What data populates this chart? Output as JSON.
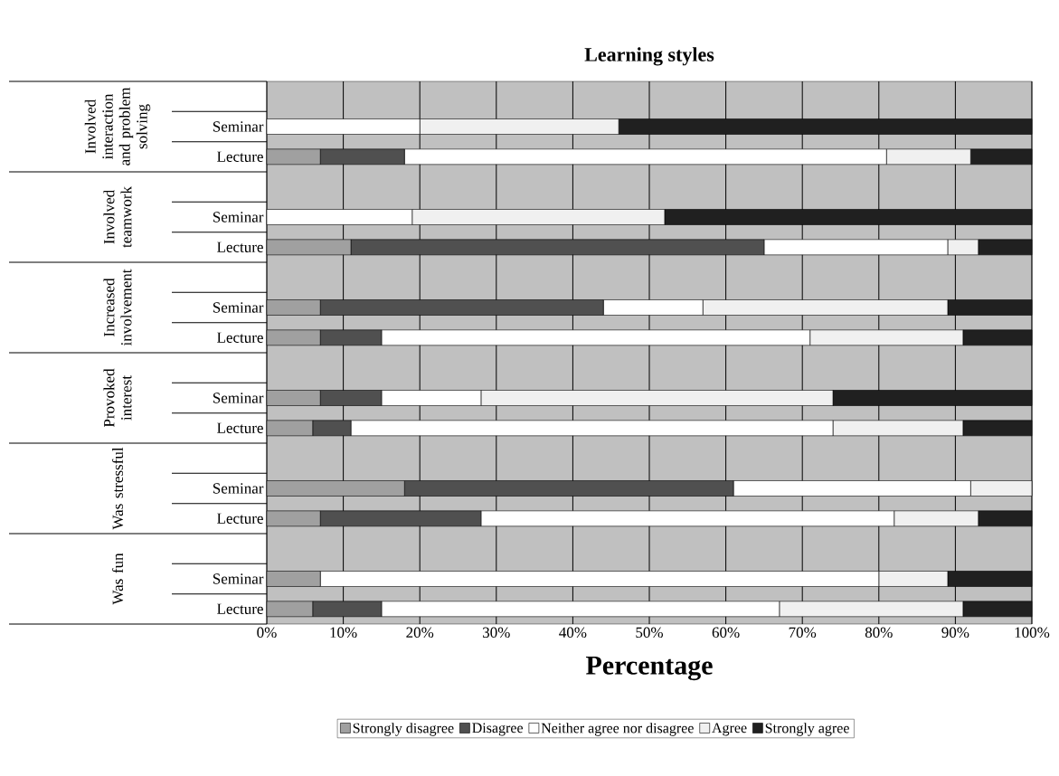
{
  "chart_data": {
    "type": "bar",
    "orientation": "horizontal",
    "stacked": true,
    "title": "Learning styles",
    "xlabel": "Percentage",
    "categories": [
      null,
      "Seminar",
      "Lecture",
      null,
      "Seminar",
      "Lecture",
      null,
      "Seminar",
      "Lecture",
      null,
      "Seminar",
      "Lecture",
      null,
      "Seminar",
      "Lecture",
      null,
      "Seminar",
      "Lecture"
    ],
    "series": [
      {
        "name": "Strongly disagree",
        "color": "#a0a0a0",
        "values": [
          null,
          0,
          7,
          null,
          0,
          11,
          null,
          7,
          7,
          null,
          7,
          6,
          null,
          18,
          7,
          null,
          7,
          6
        ]
      },
      {
        "name": "Disagree",
        "color": "#505050",
        "values": [
          null,
          0,
          11,
          null,
          0,
          54,
          null,
          37,
          8,
          null,
          8,
          5,
          null,
          43,
          21,
          null,
          0,
          9
        ]
      },
      {
        "name": "Neither agree nor disagree",
        "color": "#ffffff",
        "values": [
          null,
          20,
          63,
          null,
          19,
          24,
          null,
          13,
          56,
          null,
          13,
          63,
          null,
          31,
          54,
          null,
          73,
          52
        ]
      },
      {
        "name": "Agree",
        "color": "#f0f0f0",
        "values": [
          null,
          26,
          11,
          null,
          33,
          4,
          null,
          32,
          20,
          null,
          46,
          17,
          null,
          8,
          11,
          null,
          9,
          24
        ]
      },
      {
        "name": "Strongly agree",
        "color": "#202020",
        "values": [
          null,
          54,
          8,
          null,
          48,
          7,
          null,
          11,
          9,
          null,
          26,
          9,
          null,
          0,
          7,
          null,
          11,
          9
        ]
      }
    ],
    "xlim": [
      0,
      100
    ],
    "xticks": [
      {
        "value": 0,
        "label": "0%"
      },
      {
        "value": 10,
        "label": "10%"
      },
      {
        "value": 20,
        "label": "20%"
      },
      {
        "value": 30,
        "label": "30%"
      },
      {
        "value": 40,
        "label": "40%"
      },
      {
        "value": 50,
        "label": "50%"
      },
      {
        "value": 60,
        "label": "60%"
      },
      {
        "value": 70,
        "label": "70%"
      },
      {
        "value": 80,
        "label": "80%"
      },
      {
        "value": 90,
        "label": "90%"
      },
      {
        "value": 100,
        "label": "100%"
      }
    ],
    "grid": "x",
    "legend": "bottom",
    "annotations": [
      "Involved interaction and problem solving",
      "Involved teamwork",
      "Increased involvement",
      "Provoked interest",
      "Was stressful",
      "Was fun"
    ]
  }
}
